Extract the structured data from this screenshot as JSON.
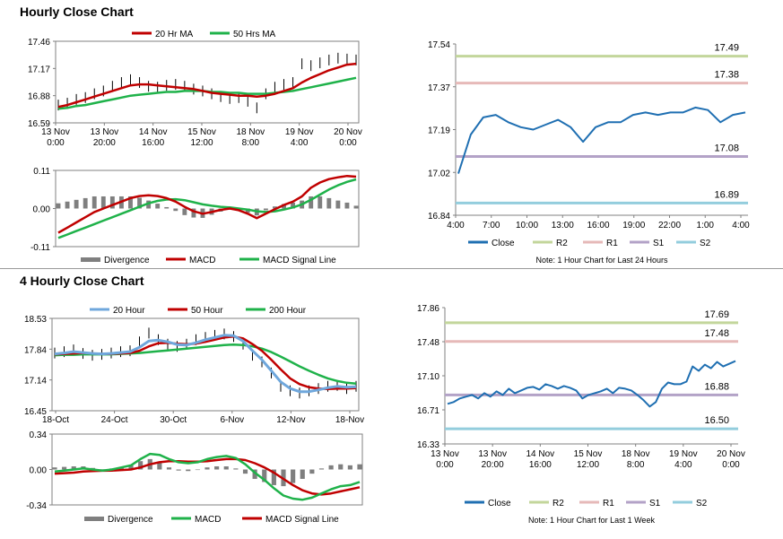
{
  "sections": {
    "hourly_title": "Hourly Close Chart",
    "four_hourly_title": "4 Hourly Close Chart"
  },
  "colors": {
    "red": "#c00000",
    "green": "#1fb24a",
    "blue_line": "#1f6fb2",
    "light_blue": "#6fa7dc",
    "r2": "#c3d69b",
    "r1": "#e6b9b8",
    "s1": "#b3a2c7",
    "s2": "#93cddd",
    "divergence": "#7f7f7f"
  },
  "chart_data": [
    {
      "id": "hourly_price",
      "type": "line",
      "x_labels": [
        "13 Nov\n0:00",
        "13 Nov\n20:00",
        "14 Nov\n16:00",
        "15 Nov\n12:00",
        "18 Nov\n8:00",
        "19 Nov\n4:00",
        "20 Nov\n0:00"
      ],
      "y_ticks": [
        "17.46",
        "17.17",
        "16.88",
        "16.59"
      ],
      "ylim": [
        16.59,
        17.46
      ],
      "legend": [
        "20 Hr MA",
        "50 Hrs MA"
      ],
      "series": [
        {
          "name": "Price",
          "values": [
            16.78,
            16.8,
            16.84,
            16.86,
            16.9,
            16.93,
            16.98,
            17.02,
            17.05,
            17.02,
            16.98,
            16.97,
            16.99,
            17.0,
            16.98,
            16.95,
            16.93,
            16.9,
            16.87,
            16.85,
            16.86,
            16.82,
            16.75,
            16.9,
            16.97,
            17.0,
            17.02,
            17.22,
            17.2,
            17.23,
            17.26,
            17.28,
            17.27,
            17.26
          ]
        },
        {
          "name": "20 Hr MA",
          "values": [
            16.76,
            16.78,
            16.81,
            16.84,
            16.87,
            16.9,
            16.93,
            16.96,
            16.99,
            17.0,
            17.0,
            16.99,
            16.98,
            16.97,
            16.96,
            16.95,
            16.93,
            16.91,
            16.9,
            16.89,
            16.88,
            16.88,
            16.87,
            16.88,
            16.9,
            16.93,
            16.96,
            17.02,
            17.07,
            17.11,
            17.15,
            17.18,
            17.21,
            17.22
          ]
        },
        {
          "name": "50 Hrs MA",
          "values": [
            16.74,
            16.75,
            16.77,
            16.78,
            16.8,
            16.82,
            16.84,
            16.86,
            16.88,
            16.89,
            16.9,
            16.91,
            16.92,
            16.92,
            16.93,
            16.93,
            16.93,
            16.92,
            16.92,
            16.91,
            16.91,
            16.9,
            16.9,
            16.9,
            16.91,
            16.92,
            16.93,
            16.95,
            16.97,
            16.99,
            17.01,
            17.03,
            17.05,
            17.07
          ]
        }
      ]
    },
    {
      "id": "hourly_macd",
      "type": "line",
      "y_ticks": [
        "0.11",
        "0.00",
        "-0.11"
      ],
      "ylim": [
        -0.11,
        0.11
      ],
      "legend": [
        "Divergence",
        "MACD",
        "MACD Signal Line"
      ],
      "series": [
        {
          "name": "MACD",
          "values": [
            -0.07,
            -0.055,
            -0.04,
            -0.025,
            -0.01,
            0.0,
            0.01,
            0.02,
            0.03,
            0.036,
            0.038,
            0.036,
            0.03,
            0.02,
            0.005,
            -0.008,
            -0.015,
            -0.01,
            -0.004,
            0.0,
            -0.005,
            -0.015,
            -0.028,
            -0.015,
            -0.002,
            0.01,
            0.02,
            0.035,
            0.06,
            0.075,
            0.085,
            0.09,
            0.094,
            0.092
          ]
        },
        {
          "name": "MACD Signal Line",
          "values": [
            -0.085,
            -0.075,
            -0.065,
            -0.055,
            -0.045,
            -0.035,
            -0.025,
            -0.015,
            -0.005,
            0.005,
            0.015,
            0.022,
            0.026,
            0.027,
            0.024,
            0.018,
            0.012,
            0.008,
            0.005,
            0.003,
            0.0,
            -0.003,
            -0.008,
            -0.01,
            -0.008,
            -0.003,
            0.003,
            0.012,
            0.025,
            0.04,
            0.055,
            0.067,
            0.077,
            0.084
          ]
        },
        {
          "name": "Divergence",
          "values": [
            0.015,
            0.02,
            0.025,
            0.03,
            0.035,
            0.035,
            0.035,
            0.035,
            0.035,
            0.031,
            0.023,
            0.014,
            0.004,
            -0.007,
            -0.019,
            -0.026,
            -0.027,
            -0.018,
            -0.009,
            -0.003,
            -0.005,
            -0.012,
            -0.02,
            -0.005,
            0.006,
            0.013,
            0.017,
            0.023,
            0.035,
            0.035,
            0.03,
            0.023,
            0.017,
            0.008
          ]
        }
      ]
    },
    {
      "id": "hourly_levels",
      "type": "line",
      "x_labels": [
        "4:00",
        "7:00",
        "10:00",
        "13:00",
        "16:00",
        "19:00",
        "22:00",
        "1:00",
        "4:00"
      ],
      "y_ticks": [
        "17.54",
        "17.37",
        "17.19",
        "17.02",
        "16.84"
      ],
      "ylim": [
        16.84,
        17.54
      ],
      "levels": [
        {
          "name": "R2",
          "value": 17.49,
          "label": "17.49"
        },
        {
          "name": "R1",
          "value": 17.38,
          "label": "17.38"
        },
        {
          "name": "S1",
          "value": 17.08,
          "label": "17.08"
        },
        {
          "name": "S2",
          "value": 16.89,
          "label": "16.89"
        }
      ],
      "legend": [
        "Close",
        "R2",
        "R1",
        "S1",
        "S2"
      ],
      "note": "Note: 1 Hour Chart for Last 24 Hours",
      "series": [
        {
          "name": "Close",
          "values": [
            17.01,
            17.17,
            17.24,
            17.25,
            17.22,
            17.2,
            17.19,
            17.21,
            17.23,
            17.2,
            17.14,
            17.2,
            17.22,
            17.22,
            17.25,
            17.26,
            17.25,
            17.26,
            17.26,
            17.28,
            17.27,
            17.22,
            17.25,
            17.26
          ]
        }
      ]
    },
    {
      "id": "four_hourly_price",
      "type": "line",
      "x_labels": [
        "18-Oct",
        "24-Oct",
        "30-Oct",
        "6-Nov",
        "12-Nov",
        "18-Nov"
      ],
      "y_ticks": [
        "18.53",
        "17.84",
        "17.14",
        "16.45"
      ],
      "ylim": [
        16.45,
        18.53
      ],
      "legend": [
        "20 Hour",
        "50 Hour",
        "200 Hour"
      ],
      "series": [
        {
          "name": "Price",
          "values": [
            17.75,
            17.78,
            17.82,
            17.74,
            17.7,
            17.72,
            17.75,
            17.78,
            17.8,
            18.0,
            18.2,
            18.05,
            17.95,
            17.9,
            17.95,
            18.05,
            18.1,
            18.15,
            18.18,
            18.12,
            17.95,
            17.7,
            17.55,
            17.3,
            17.0,
            16.9,
            16.85,
            16.9,
            16.95,
            17.0,
            17.02,
            16.95,
            17.0
          ]
        },
        {
          "name": "20 Hour",
          "values": [
            17.73,
            17.75,
            17.78,
            17.76,
            17.74,
            17.73,
            17.74,
            17.76,
            17.78,
            17.88,
            18.02,
            18.04,
            18.0,
            17.94,
            17.93,
            17.98,
            18.05,
            18.1,
            18.15,
            18.14,
            18.02,
            17.8,
            17.6,
            17.35,
            17.1,
            16.95,
            16.88,
            16.88,
            16.92,
            16.97,
            17.0,
            16.98,
            16.99
          ]
        },
        {
          "name": "50 Hour",
          "values": [
            17.72,
            17.73,
            17.74,
            17.75,
            17.74,
            17.73,
            17.73,
            17.74,
            17.75,
            17.8,
            17.9,
            17.97,
            17.98,
            17.96,
            17.95,
            17.96,
            18.0,
            18.05,
            18.1,
            18.12,
            18.08,
            17.95,
            17.8,
            17.6,
            17.38,
            17.18,
            17.05,
            16.98,
            16.95,
            16.94,
            16.95,
            16.95,
            16.96
          ]
        },
        {
          "name": "200 Hour",
          "values": [
            17.7,
            17.71,
            17.71,
            17.72,
            17.72,
            17.72,
            17.72,
            17.73,
            17.74,
            17.75,
            17.77,
            17.79,
            17.81,
            17.83,
            17.85,
            17.87,
            17.89,
            17.91,
            17.93,
            17.94,
            17.93,
            17.9,
            17.85,
            17.77,
            17.67,
            17.56,
            17.45,
            17.35,
            17.26,
            17.18,
            17.12,
            17.08,
            17.06
          ]
        }
      ]
    },
    {
      "id": "four_hourly_macd",
      "type": "line",
      "y_ticks": [
        "0.34",
        "0.00",
        "-0.34"
      ],
      "ylim": [
        -0.34,
        0.34
      ],
      "legend": [
        "Divergence",
        "MACD",
        "MACD Signal Line"
      ],
      "series": [
        {
          "name": "MACD",
          "values": [
            -0.02,
            -0.01,
            0.0,
            0.01,
            0.0,
            -0.01,
            0.0,
            0.02,
            0.04,
            0.1,
            0.15,
            0.14,
            0.1,
            0.07,
            0.06,
            0.07,
            0.1,
            0.12,
            0.13,
            0.11,
            0.05,
            -0.03,
            -0.1,
            -0.18,
            -0.25,
            -0.28,
            -0.29,
            -0.27,
            -0.23,
            -0.19,
            -0.16,
            -0.15,
            -0.12
          ]
        },
        {
          "name": "MACD Signal Line",
          "values": [
            -0.04,
            -0.035,
            -0.03,
            -0.02,
            -0.015,
            -0.012,
            -0.01,
            -0.005,
            0.0,
            0.02,
            0.05,
            0.07,
            0.08,
            0.08,
            0.075,
            0.075,
            0.08,
            0.09,
            0.1,
            0.1,
            0.09,
            0.06,
            0.02,
            -0.03,
            -0.09,
            -0.15,
            -0.2,
            -0.23,
            -0.24,
            -0.23,
            -0.21,
            -0.19,
            -0.17
          ]
        },
        {
          "name": "Divergence",
          "values": [
            0.02,
            0.025,
            0.03,
            0.03,
            0.015,
            0.002,
            0.01,
            0.025,
            0.04,
            0.08,
            0.1,
            0.07,
            0.02,
            -0.01,
            -0.015,
            -0.005,
            0.02,
            0.03,
            0.03,
            0.01,
            -0.04,
            -0.09,
            -0.12,
            -0.15,
            -0.16,
            -0.13,
            -0.09,
            -0.04,
            0.01,
            0.04,
            0.05,
            0.04,
            0.05
          ]
        }
      ]
    },
    {
      "id": "four_hourly_levels",
      "type": "line",
      "x_labels": [
        "13 Nov\n0:00",
        "13 Nov\n20:00",
        "14 Nov\n16:00",
        "15 Nov\n12:00",
        "18 Nov\n8:00",
        "19 Nov\n4:00",
        "20 Nov\n0:00"
      ],
      "y_ticks": [
        "17.86",
        "17.48",
        "17.10",
        "16.71",
        "16.33"
      ],
      "ylim": [
        16.33,
        17.86
      ],
      "levels": [
        {
          "name": "R2",
          "value": 17.69,
          "label": "17.69"
        },
        {
          "name": "R1",
          "value": 17.48,
          "label": "17.48"
        },
        {
          "name": "S1",
          "value": 16.88,
          "label": "16.88"
        },
        {
          "name": "S2",
          "value": 16.5,
          "label": "16.50"
        }
      ],
      "legend": [
        "Close",
        "R2",
        "R1",
        "S1",
        "S2"
      ],
      "note": "Note: 1 Hour Chart for Last 1 Week",
      "series": [
        {
          "name": "Close",
          "values": [
            16.78,
            16.8,
            16.84,
            16.86,
            16.88,
            16.84,
            16.9,
            16.86,
            16.92,
            16.88,
            16.95,
            16.9,
            16.93,
            16.96,
            16.97,
            16.94,
            17.0,
            16.98,
            16.95,
            16.98,
            16.96,
            16.93,
            16.84,
            16.88,
            16.9,
            16.92,
            16.95,
            16.9,
            16.96,
            16.95,
            16.93,
            16.88,
            16.82,
            16.75,
            16.8,
            16.95,
            17.02,
            17.0,
            17.0,
            17.03,
            17.2,
            17.15,
            17.22,
            17.18,
            17.25,
            17.2,
            17.23,
            17.26
          ]
        }
      ]
    }
  ]
}
